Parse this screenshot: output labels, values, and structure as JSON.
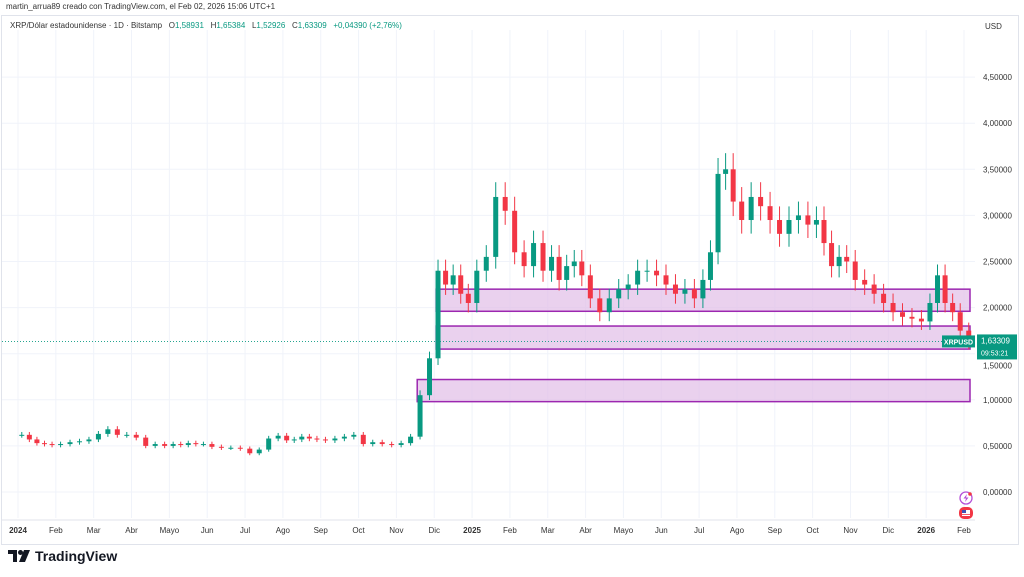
{
  "header": {
    "credit": "martin_arrua89 creado con TradingView.com, el Feb 02, 2026 15:06 UTC+1",
    "symbol_desc": "XRP/Dólar estadounidense · 1D · Bitstamp",
    "open_label": "O",
    "open": "1,58931",
    "high_label": "H",
    "high": "1,65384",
    "low_label": "L",
    "low": "1,52926",
    "close_label": "C",
    "close": "1,63309",
    "change": "+0,04390 (+2,76%)"
  },
  "price_scale": {
    "currency": "USD"
  },
  "last_price": {
    "symbol": "XRPUSD",
    "price": "1,63309",
    "countdown": "09:53:21",
    "value": 1.63309,
    "color": "#089981"
  },
  "brand": {
    "name": "TradingView"
  },
  "colors": {
    "up": "#089981",
    "down": "#f23645",
    "zone_fill": "#e1bee7",
    "zone_border": "#9c27b0"
  },
  "icons": [
    "lightning-icon",
    "us-flag-icon"
  ],
  "chart_data": {
    "type": "candlestick",
    "title": "",
    "ylim": [
      -0.25,
      4.9
    ],
    "y_ticks": [
      "4,50000",
      "4,00000",
      "3,50000",
      "3,00000",
      "2,50000",
      "2,00000",
      "1,50000",
      "1,00000",
      "0,50000",
      "0,00000"
    ],
    "y_tick_values": [
      4.5,
      4.0,
      3.5,
      3.0,
      2.5,
      2.0,
      1.5,
      1.0,
      0.5,
      0.0
    ],
    "x_ticks": [
      {
        "label": "2024",
        "date": "2024-01",
        "year": true
      },
      {
        "label": "Feb",
        "date": "2024-02"
      },
      {
        "label": "Mar",
        "date": "2024-03"
      },
      {
        "label": "Abr",
        "date": "2024-04"
      },
      {
        "label": "Mayo",
        "date": "2024-05"
      },
      {
        "label": "Jun",
        "date": "2024-06"
      },
      {
        "label": "Jul",
        "date": "2024-07"
      },
      {
        "label": "Ago",
        "date": "2024-08"
      },
      {
        "label": "Sep",
        "date": "2024-09"
      },
      {
        "label": "Oct",
        "date": "2024-10"
      },
      {
        "label": "Nov",
        "date": "2024-11"
      },
      {
        "label": "Dic",
        "date": "2024-12"
      },
      {
        "label": "2025",
        "date": "2025-01",
        "year": true
      },
      {
        "label": "Feb",
        "date": "2025-02"
      },
      {
        "label": "Mar",
        "date": "2025-03"
      },
      {
        "label": "Abr",
        "date": "2025-04"
      },
      {
        "label": "Mayo",
        "date": "2025-05"
      },
      {
        "label": "Jun",
        "date": "2025-06"
      },
      {
        "label": "Jul",
        "date": "2025-07"
      },
      {
        "label": "Ago",
        "date": "2025-08"
      },
      {
        "label": "Sep",
        "date": "2025-09"
      },
      {
        "label": "Oct",
        "date": "2025-10"
      },
      {
        "label": "Nov",
        "date": "2025-11"
      },
      {
        "label": "Dic",
        "date": "2025-12"
      },
      {
        "label": "2026",
        "date": "2026-01",
        "year": true
      },
      {
        "label": "Feb",
        "date": "2026-02"
      }
    ],
    "closes_by_month": {
      "2024-01": [
        0.62,
        0.57,
        0.53,
        0.52,
        0.51
      ],
      "2024-02": [
        0.52,
        0.54,
        0.55,
        0.57
      ],
      "2024-03": [
        0.63,
        0.68,
        0.62,
        0.62
      ],
      "2024-04": [
        0.59,
        0.5,
        0.52,
        0.5
      ],
      "2024-05": [
        0.52,
        0.51,
        0.53,
        0.52,
        0.52
      ],
      "2024-06": [
        0.49,
        0.48,
        0.48,
        0.47
      ],
      "2024-07": [
        0.42,
        0.46,
        0.58,
        0.61
      ],
      "2024-08": [
        0.56,
        0.57,
        0.6,
        0.58,
        0.57
      ],
      "2024-09": [
        0.56,
        0.58,
        0.6,
        0.62
      ],
      "2024-10": [
        0.52,
        0.54,
        0.52,
        0.51
      ],
      "2024-11": [
        0.53,
        0.6,
        1.05,
        1.45
      ],
      "2024-12": [
        2.4,
        2.25,
        2.35,
        2.15,
        2.05
      ],
      "2025-01": [
        2.4,
        2.55,
        3.2,
        3.05
      ],
      "2025-02": [
        2.6,
        2.45,
        2.7,
        2.4
      ],
      "2025-03": [
        2.55,
        2.3,
        2.45,
        2.5,
        2.35
      ],
      "2025-04": [
        2.1,
        1.95,
        2.1,
        2.2
      ],
      "2025-05": [
        2.25,
        2.4,
        2.4,
        2.35
      ],
      "2025-06": [
        2.25,
        2.15,
        2.2,
        2.1
      ],
      "2025-07": [
        2.3,
        2.6,
        3.45,
        3.5,
        3.15
      ],
      "2025-08": [
        2.95,
        3.2,
        3.1,
        2.95
      ],
      "2025-09": [
        2.8,
        2.95,
        3.0,
        2.9
      ],
      "2025-10": [
        2.95,
        2.7,
        2.45,
        2.55,
        2.5
      ],
      "2025-11": [
        2.3,
        2.25,
        2.15,
        2.05
      ],
      "2025-12": [
        1.95,
        1.9,
        1.88,
        1.85
      ],
      "2026-01": [
        2.05,
        2.35,
        2.05,
        1.95,
        1.75
      ],
      "2026-02": [
        1.63
      ]
    },
    "zones": [
      {
        "from": "2024-12",
        "to": "2026-02",
        "low": 1.96,
        "high": 2.2
      },
      {
        "from": "2024-12",
        "to": "2026-02",
        "low": 1.55,
        "high": 1.8
      },
      {
        "from": "2024-11",
        "to": "2026-02",
        "low": 0.98,
        "high": 1.22
      }
    ]
  }
}
